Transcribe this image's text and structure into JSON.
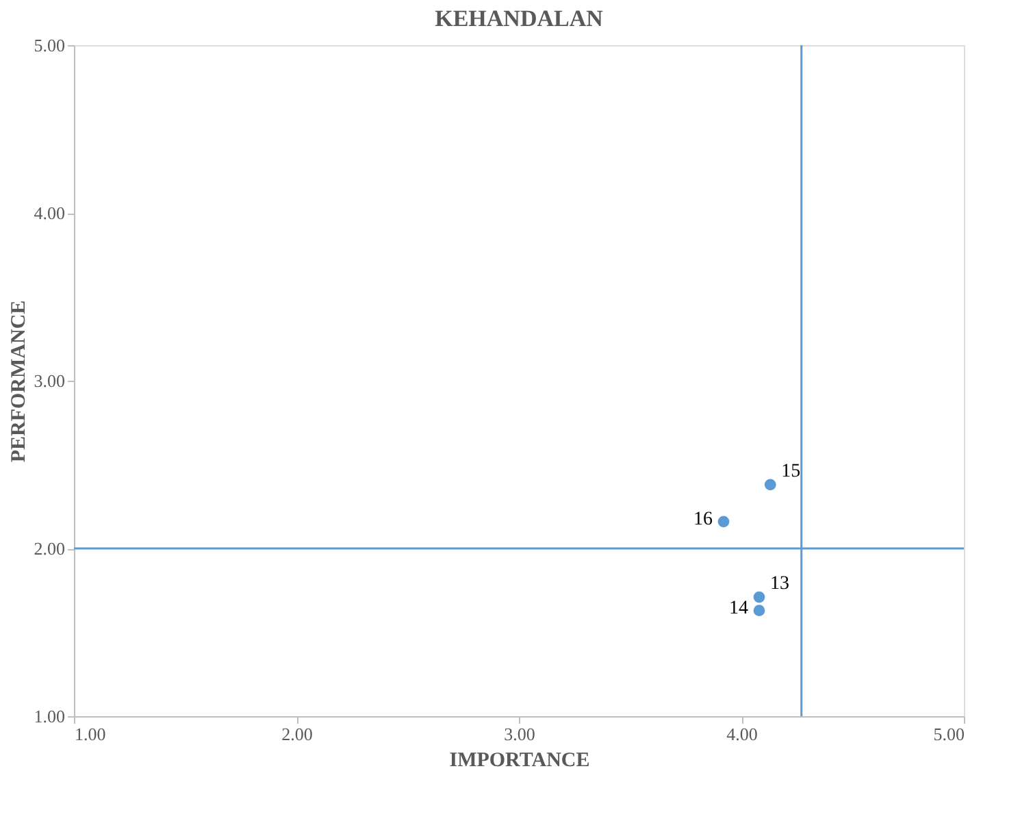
{
  "chart_data": {
    "type": "scatter",
    "title": "KEHANDALAN",
    "xlabel": "IMPORTANCE",
    "ylabel": "PERFORMANCE",
    "x": [
      4.08,
      4.08,
      4.13,
      3.92
    ],
    "series": [
      {
        "color": "#5b9bd5",
        "values": [
          1.71,
          1.63,
          2.38,
          2.16
        ]
      }
    ],
    "marker": "circle",
    "xlim": [
      1,
      5
    ],
    "ylim": [
      1,
      5
    ],
    "xticks": [
      {
        "value": 1,
        "label": "1.00"
      },
      {
        "value": 2,
        "label": "2.00"
      },
      {
        "value": 3,
        "label": "3.00"
      },
      {
        "value": 4,
        "label": "4.00"
      },
      {
        "value": 5,
        "label": "5.00"
      }
    ],
    "yticks": [
      {
        "value": 1,
        "label": "1.00"
      },
      {
        "value": 2,
        "label": "2.00"
      },
      {
        "value": 3,
        "label": "3.00"
      },
      {
        "value": 4,
        "label": "4.00"
      },
      {
        "value": 5,
        "label": "5.00"
      }
    ],
    "ref_lines": [
      {
        "axis": "x",
        "value": 4.27,
        "color": "#5b9bd5"
      },
      {
        "axis": "y",
        "value": 2.0,
        "color": "#5b9bd5"
      }
    ],
    "annotations": [
      {
        "text": "13",
        "x": 4.08,
        "y": 1.71
      },
      {
        "text": "14",
        "x": 4.08,
        "y": 1.63
      },
      {
        "text": "15",
        "x": 4.13,
        "y": 2.38
      },
      {
        "text": "16",
        "x": 3.92,
        "y": 2.16
      }
    ],
    "grid": false
  }
}
